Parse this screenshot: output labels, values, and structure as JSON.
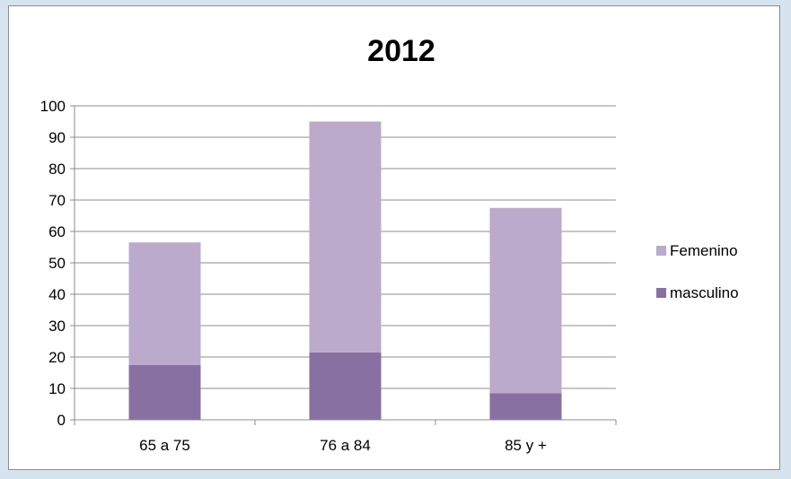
{
  "chart_data": {
    "type": "bar",
    "stacked": true,
    "title": "2012",
    "categories": [
      "65 a 75",
      "76 a 84",
      "85 y +"
    ],
    "series": [
      {
        "name": "masculino",
        "values": [
          17.5,
          21.5,
          8.5
        ],
        "color": "#8870a2"
      },
      {
        "name": "Femenino",
        "values": [
          39,
          73.5,
          59
        ],
        "color": "#bbaacb"
      }
    ],
    "ylim": [
      0,
      100
    ],
    "yticks": [
      0,
      10,
      20,
      30,
      40,
      50,
      60,
      70,
      80,
      90,
      100
    ],
    "grid": true,
    "legend_position": "right",
    "legend_order": [
      "Femenino",
      "masculino"
    ],
    "colors": {
      "grid": "#8c8c8c",
      "axis": "#8c8c8c"
    }
  }
}
